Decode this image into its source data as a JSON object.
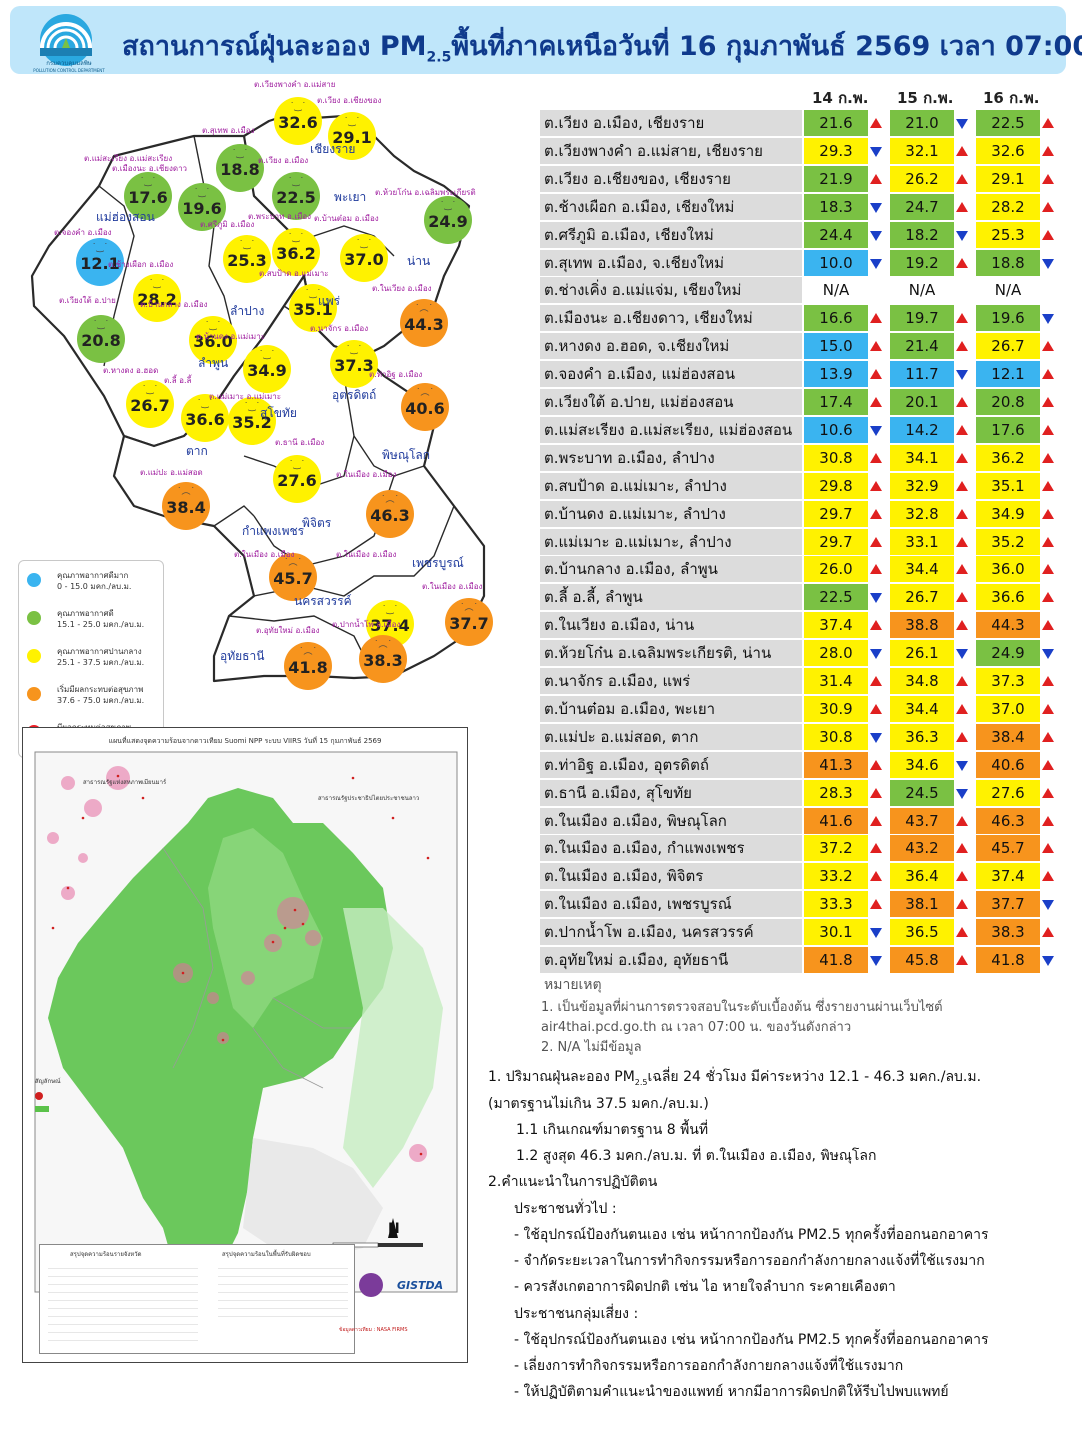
{
  "header": {
    "agency": "กรมควบคุมมลพิษ",
    "agency_en": "POLLUTION CONTROL DEPARTMENT",
    "title_pre": "สถานการณ์ฝุ่นละออง PM",
    "title_sub": "2.5",
    "title_post": "พื้นที่ภาคเหนือวันที่ 16 กุมภาพันธ์ 2569 เวลา 07:00 น."
  },
  "colors": {
    "very_good": "#3ab4f0",
    "good": "#7ac143",
    "moderate": "#fff200",
    "start_affect": "#f7941d",
    "affect": "#ed1c24",
    "arrow_up": "#e02020",
    "arrow_down": "#1a3fc8"
  },
  "map": {
    "provinces": [
      {
        "name": "เชียงราย"
      },
      {
        "name": "แม่ฮ่องสอน"
      },
      {
        "name": "พะเยา"
      },
      {
        "name": "น่าน"
      },
      {
        "name": "ลำปาง"
      },
      {
        "name": "แพร่"
      },
      {
        "name": "ลำพูน"
      },
      {
        "name": "อุตรดิตถ์"
      },
      {
        "name": "สุโขทัย"
      },
      {
        "name": "ตาก"
      },
      {
        "name": "พิษณุโลก"
      },
      {
        "name": "กำแพงเพชร"
      },
      {
        "name": "พิจิตร"
      },
      {
        "name": "เพชรบูรณ์"
      },
      {
        "name": "นครสวรรค์"
      },
      {
        "name": "อุทัยธานี"
      }
    ],
    "stations": [
      {
        "label": "ต.เวียงพางคำ อ.แม่สาย",
        "value": "32.6",
        "level": "moderate"
      },
      {
        "label": "ต.เวียง อ.เชียงของ",
        "value": "29.1",
        "level": "moderate"
      },
      {
        "label": "ต.สุเทพ อ.เมือง",
        "value": "18.8",
        "level": "good"
      },
      {
        "label": "ต.เวียง อ.เมือง",
        "value": "22.5",
        "level": "good"
      },
      {
        "label": "ต.แม่สะเรียง อ.แม่สะเรียง",
        "value": "17.6",
        "level": "good"
      },
      {
        "label": "ต.เมืองนะ อ.เชียงดาว",
        "value": "19.6",
        "level": "good"
      },
      {
        "label": "ต.ห้วยโก๋น อ.เฉลิมพระเกียรติ",
        "value": "24.9",
        "level": "good"
      },
      {
        "label": "ต.จองคำ อ.เมือง",
        "value": "12.1",
        "level": "very_good"
      },
      {
        "label": "ต.ศรีภูมิ อ.เมือง",
        "value": "25.3",
        "level": "moderate"
      },
      {
        "label": "ต.พระบาท อ.เมือง",
        "value": "36.2",
        "level": "moderate"
      },
      {
        "label": "ต.บ้านต๋อม อ.เมือง",
        "value": "37.0",
        "level": "moderate"
      },
      {
        "label": "ต.ช้างเผือก อ.เมือง",
        "value": "28.2",
        "level": "moderate"
      },
      {
        "label": "ต.สบป้าด อ.แม่เมาะ",
        "value": "35.1",
        "level": "moderate"
      },
      {
        "label": "ต.ในเวียง อ.เมือง",
        "value": "44.3",
        "level": "start_affect"
      },
      {
        "label": "ต.เวียงใต้ อ.ปาย",
        "value": "20.8",
        "level": "good"
      },
      {
        "label": "ต.บ้านกลาง อ.เมือง",
        "value": "36.0",
        "level": "moderate"
      },
      {
        "label": "ต.บ้านดง อ.แม่เมาะ",
        "value": "34.9",
        "level": "moderate"
      },
      {
        "label": "ต.นาจักร อ.เมือง",
        "value": "37.3",
        "level": "moderate"
      },
      {
        "label": "ต.หางดง อ.ฮอด",
        "value": "26.7",
        "level": "moderate"
      },
      {
        "label": "ต.ลี้ อ.ลี้",
        "value": "36.6",
        "level": "moderate"
      },
      {
        "label": "ต.แม่เมาะ อ.แม่เมาะ",
        "value": "35.2",
        "level": "moderate"
      },
      {
        "label": "ต.ท่าอิฐ อ.เมือง",
        "value": "40.6",
        "level": "start_affect"
      },
      {
        "label": "ต.ธานี อ.เมือง",
        "value": "27.6",
        "level": "moderate"
      },
      {
        "label": "ต.แม่ปะ อ.แม่สอด",
        "value": "38.4",
        "level": "start_affect"
      },
      {
        "label": "ต.ในเมือง อ.เมือง",
        "value": "46.3",
        "level": "start_affect"
      },
      {
        "label": "ต.ในเมือง อ.เมือง",
        "value": "45.7",
        "level": "start_affect"
      },
      {
        "label": "ต.ในเมือง อ.เมือง",
        "value": "37.4",
        "level": "moderate"
      },
      {
        "label": "ต.ในเมือง อ.เมือง",
        "value": "37.7",
        "level": "start_affect"
      },
      {
        "label": "ต.อุทัยใหม่ อ.เมือง",
        "value": "41.8",
        "level": "start_affect"
      },
      {
        "label": "ต.ปากน้ำโพ อ.เมือง",
        "value": "38.3",
        "level": "start_affect"
      }
    ],
    "legend": [
      {
        "title": "คุณภาพอากาศดีมาก",
        "range": "0 - 15.0 มคก./ลบ.ม.",
        "level": "very_good"
      },
      {
        "title": "คุณภาพอากาศดี",
        "range": "15.1 - 25.0 มคก./ลบ.ม.",
        "level": "good"
      },
      {
        "title": "คุณภาพอากาศปานกลาง",
        "range": "25.1 - 37.5 มคก./ลบ.ม.",
        "level": "moderate"
      },
      {
        "title": "เริ่มมีผลกระทบต่อสุขภาพ",
        "range": "37.6 - 75.0 มคก./ลบ.ม.",
        "level": "start_affect"
      },
      {
        "title": "มีผลกระทบต่อสุขภาพ",
        "range": "มากกว่า 75 มคก./ลบ.ม.",
        "level": "affect"
      }
    ]
  },
  "satellite": {
    "title": "แผนที่แสดงจุดความร้อนจากดาวเทียม Suomi NPP ระบบ VIIRS  วันที่ 15 กุมภาพันธ์ 2569",
    "label_myanmar": "สาธารณรัฐแห่งสหภาพเมียนมาร์",
    "label_laos": "สาธารณรัฐประชาธิปไตยประชาชนลาว",
    "legend_title": "สัญลักษณ์",
    "summary_province": "สรุปจุดความร้อนรายจังหวัด",
    "summary_area": "สรุปจุดความร้อนในพื้นที่รับผิดชอบ",
    "gistda": "GISTDA",
    "data_source": "ข้อมูลดาวเทียม : NASA FIRMS"
  },
  "table": {
    "dates": [
      "14 ก.พ.",
      "15 ก.พ.",
      "16 ก.พ."
    ],
    "rows": [
      {
        "name": "ต.เวียง อ.เมือง, เชียงราย",
        "d": [
          "21.6",
          "21.0",
          "22.5"
        ],
        "lv": [
          "good",
          "good",
          "good"
        ],
        "t": [
          "up",
          "down",
          "up"
        ]
      },
      {
        "name": "ต.เวียงพางคำ อ.แม่สาย, เชียงราย",
        "d": [
          "29.3",
          "32.1",
          "32.6"
        ],
        "lv": [
          "moderate",
          "moderate",
          "moderate"
        ],
        "t": [
          "down",
          "up",
          "up"
        ]
      },
      {
        "name": "ต.เวียง อ.เชียงของ, เชียงราย",
        "d": [
          "21.9",
          "26.2",
          "29.1"
        ],
        "lv": [
          "good",
          "moderate",
          "moderate"
        ],
        "t": [
          "up",
          "up",
          "up"
        ]
      },
      {
        "name": "ต.ช้างเผือก อ.เมือง, เชียงใหม่",
        "d": [
          "18.3",
          "24.7",
          "28.2"
        ],
        "lv": [
          "good",
          "good",
          "moderate"
        ],
        "t": [
          "down",
          "up",
          "up"
        ]
      },
      {
        "name": "ต.ศรีภูมิ อ.เมือง, เชียงใหม่",
        "d": [
          "24.4",
          "18.2",
          "25.3"
        ],
        "lv": [
          "good",
          "good",
          "moderate"
        ],
        "t": [
          "down",
          "down",
          "up"
        ]
      },
      {
        "name": "ต.สุเทพ อ.เมือง, จ.เชียงใหม่",
        "d": [
          "10.0",
          "19.2",
          "18.8"
        ],
        "lv": [
          "very_good",
          "good",
          "good"
        ],
        "t": [
          "down",
          "up",
          "down"
        ]
      },
      {
        "name": "ต.ช่างเคิ่ง อ.แม่แจ่ม, เชียงใหม่",
        "d": [
          "N/A",
          "N/A",
          "N/A"
        ],
        "lv": [
          "na",
          "na",
          "na"
        ],
        "t": [
          "",
          "",
          ""
        ]
      },
      {
        "name": "ต.เมืองนะ อ.เชียงดาว, เชียงใหม่",
        "d": [
          "16.6",
          "19.7",
          "19.6"
        ],
        "lv": [
          "good",
          "good",
          "good"
        ],
        "t": [
          "up",
          "up",
          "down"
        ]
      },
      {
        "name": "ต.หางดง อ.ฮอด, จ.เชียงใหม่",
        "d": [
          "15.0",
          "21.4",
          "26.7"
        ],
        "lv": [
          "very_good",
          "good",
          "moderate"
        ],
        "t": [
          "up",
          "up",
          "up"
        ]
      },
      {
        "name": "ต.จองคำ อ.เมือง, แม่ฮ่องสอน",
        "d": [
          "13.9",
          "11.7",
          "12.1"
        ],
        "lv": [
          "very_good",
          "very_good",
          "very_good"
        ],
        "t": [
          "up",
          "down",
          "up"
        ]
      },
      {
        "name": "ต.เวียงใต้ อ.ปาย, แม่ฮ่องสอน",
        "d": [
          "17.4",
          "20.1",
          "20.8"
        ],
        "lv": [
          "good",
          "good",
          "good"
        ],
        "t": [
          "up",
          "up",
          "up"
        ]
      },
      {
        "name": "ต.แม่สะเรียง อ.แม่สะเรียง, แม่ฮ่องสอน",
        "d": [
          "10.6",
          "14.2",
          "17.6"
        ],
        "lv": [
          "very_good",
          "very_good",
          "good"
        ],
        "t": [
          "down",
          "up",
          "up"
        ]
      },
      {
        "name": "ต.พระบาท อ.เมือง, ลำปาง",
        "d": [
          "30.8",
          "34.1",
          "36.2"
        ],
        "lv": [
          "moderate",
          "moderate",
          "moderate"
        ],
        "t": [
          "up",
          "up",
          "up"
        ]
      },
      {
        "name": "ต.สบป้าด อ.แม่เมาะ, ลำปาง",
        "d": [
          "29.8",
          "32.9",
          "35.1"
        ],
        "lv": [
          "moderate",
          "moderate",
          "moderate"
        ],
        "t": [
          "up",
          "up",
          "up"
        ]
      },
      {
        "name": "ต.บ้านดง อ.แม่เมาะ, ลำปาง",
        "d": [
          "29.7",
          "32.8",
          "34.9"
        ],
        "lv": [
          "moderate",
          "moderate",
          "moderate"
        ],
        "t": [
          "up",
          "up",
          "up"
        ]
      },
      {
        "name": "ต.แม่เมาะ อ.แม่เมาะ, ลำปาง",
        "d": [
          "29.7",
          "33.1",
          "35.2"
        ],
        "lv": [
          "moderate",
          "moderate",
          "moderate"
        ],
        "t": [
          "up",
          "up",
          "up"
        ]
      },
      {
        "name": "ต.บ้านกลาง อ.เมือง, ลำพูน",
        "d": [
          "26.0",
          "34.4",
          "36.0"
        ],
        "lv": [
          "moderate",
          "moderate",
          "moderate"
        ],
        "t": [
          "up",
          "up",
          "up"
        ]
      },
      {
        "name": "ต.ลี้ อ.ลี้, ลำพูน",
        "d": [
          "22.5",
          "26.7",
          "36.6"
        ],
        "lv": [
          "good",
          "moderate",
          "moderate"
        ],
        "t": [
          "down",
          "up",
          "up"
        ]
      },
      {
        "name": "ต.ในเวียง อ.เมือง, น่าน",
        "d": [
          "37.4",
          "38.8",
          "44.3"
        ],
        "lv": [
          "moderate",
          "start_affect",
          "start_affect"
        ],
        "t": [
          "up",
          "up",
          "up"
        ]
      },
      {
        "name": "ต.ห้วยโก๋น อ.เฉลิมพระเกียรติ, น่าน",
        "d": [
          "28.0",
          "26.1",
          "24.9"
        ],
        "lv": [
          "moderate",
          "moderate",
          "good"
        ],
        "t": [
          "down",
          "down",
          "down"
        ]
      },
      {
        "name": "ต.นาจักร อ.เมือง, แพร่",
        "d": [
          "31.4",
          "34.8",
          "37.3"
        ],
        "lv": [
          "moderate",
          "moderate",
          "moderate"
        ],
        "t": [
          "up",
          "up",
          "up"
        ]
      },
      {
        "name": "ต.บ้านต๋อม อ.เมือง, พะเยา",
        "d": [
          "30.9",
          "34.4",
          "37.0"
        ],
        "lv": [
          "moderate",
          "moderate",
          "moderate"
        ],
        "t": [
          "up",
          "up",
          "up"
        ]
      },
      {
        "name": "ต.แม่ปะ อ.แม่สอด, ตาก",
        "d": [
          "30.8",
          "36.3",
          "38.4"
        ],
        "lv": [
          "moderate",
          "moderate",
          "start_affect"
        ],
        "t": [
          "down",
          "up",
          "up"
        ]
      },
      {
        "name": "ต.ท่าอิฐ อ.เมือง, อุตรดิตถ์",
        "d": [
          "41.3",
          "34.6",
          "40.6"
        ],
        "lv": [
          "start_affect",
          "moderate",
          "start_affect"
        ],
        "t": [
          "up",
          "down",
          "up"
        ]
      },
      {
        "name": "ต.ธานี อ.เมือง, สุโขทัย",
        "d": [
          "28.3",
          "24.5",
          "27.6"
        ],
        "lv": [
          "moderate",
          "good",
          "moderate"
        ],
        "t": [
          "up",
          "down",
          "up"
        ]
      },
      {
        "name": "ต.ในเมือง อ.เมือง, พิษณุโลก",
        "d": [
          "41.6",
          "43.7",
          "46.3"
        ],
        "lv": [
          "start_affect",
          "start_affect",
          "start_affect"
        ],
        "t": [
          "up",
          "up",
          "up"
        ]
      },
      {
        "name": "ต.ในเมือง อ.เมือง, กำแพงเพชร",
        "d": [
          "37.2",
          "43.2",
          "45.7"
        ],
        "lv": [
          "moderate",
          "start_affect",
          "start_affect"
        ],
        "t": [
          "up",
          "up",
          "up"
        ]
      },
      {
        "name": "ต.ในเมือง อ.เมือง, พิจิตร",
        "d": [
          "33.2",
          "36.4",
          "37.4"
        ],
        "lv": [
          "moderate",
          "moderate",
          "moderate"
        ],
        "t": [
          "up",
          "up",
          "up"
        ]
      },
      {
        "name": "ต.ในเมือง อ.เมือง, เพชรบูรณ์",
        "d": [
          "33.3",
          "38.1",
          "37.7"
        ],
        "lv": [
          "moderate",
          "start_affect",
          "start_affect"
        ],
        "t": [
          "up",
          "up",
          "down"
        ]
      },
      {
        "name": "ต.ปากน้ำโพ อ.เมือง, นครสวรรค์",
        "d": [
          "30.1",
          "36.5",
          "38.3"
        ],
        "lv": [
          "moderate",
          "moderate",
          "start_affect"
        ],
        "t": [
          "down",
          "up",
          "up"
        ]
      },
      {
        "name": "ต.อุทัยใหม่ อ.เมือง, อุทัยธานี",
        "d": [
          "41.8",
          "45.8",
          "41.8"
        ],
        "lv": [
          "start_affect",
          "start_affect",
          "start_affect"
        ],
        "t": [
          "down",
          "up",
          "down"
        ]
      }
    ]
  },
  "notes": {
    "heading": "หมายเหตุ",
    "lines": [
      "1. เป็นข้อมูลที่ผ่านการตรวจสอบในระดับเบื้องต้น ซึ่งรายงานผ่านเว็บไซต์",
      "air4thai.pcd.go.th  ณ  เวลา 07:00  น.  ของวันดังกล่าว",
      "2.  N/A  ไม่มีข้อมูล"
    ]
  },
  "advice": {
    "l1": "1. ปริมาณฝุ่นละออง PM",
    "l1_sub": "2.5",
    "l1b": "เฉลี่ย 24 ชั่วโมง มีค่าระหว่าง 12.1 - 46.3 มคก./ลบ.ม.",
    "l2": "(มาตรฐานไม่เกิน 37.5 มคก./ลบ.ม.)",
    "l3": "1.1 เกินเกณฑ์มาตรฐาน 8 พื้นที่",
    "l4": "1.2 สูงสุด 46.3 มคก./ลบ.ม. ที่ ต.ในเมือง อ.เมือง, พิษณุโลก",
    "l5": "2.คำแนะนำในการปฏิบัติตน",
    "l6": "ประชาชนทั่วไป :",
    "l7": "-  ใช้อุปกรณ์ป้องกันตนเอง  เช่น  หน้ากากป้องกัน  PM2.5  ทุกครั้งที่ออกนอกอาคาร",
    "l8": "-  จำกัดระยะเวลาในการทำกิจกรรมหรือการออกกำลังกายกลางแจ้งที่ใช้แรงมาก",
    "l9": "-  ควรสังเกตอาการผิดปกติ  เช่น  ไอ  หายใจลำบาก  ระคายเคืองตา",
    "l10": "ประชาชนกลุ่มเสี่ยง  :",
    "l11": "-  ใช้อุปกรณ์ป้องกันตนเอง  เช่น  หน้ากากป้องกัน  PM2.5  ทุกครั้งที่ออกนอกอาคาร",
    "l12": "-  เลี่ยงการทำกิจกรรมหรือการออกกำลังกายกลางแจ้งที่ใช้แรงมาก",
    "l13": "-  ให้ปฏิบัติตามคำแนะนำของแพทย์  หากมีอาการผิดปกติให้รีบไปพบแพทย์"
  }
}
